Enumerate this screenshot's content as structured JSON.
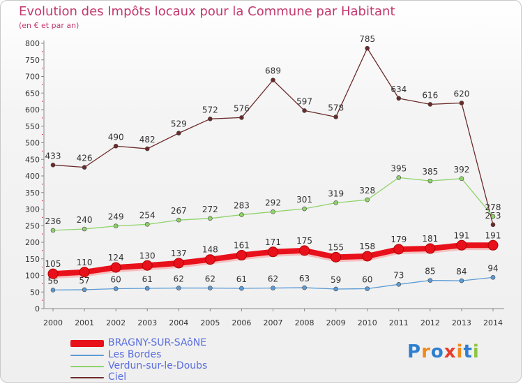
{
  "header": {
    "title": "Evolution des Impôts locaux pour la Commune par Habitant",
    "subtitle": "(en € et par an)"
  },
  "logo_text": "Proxiti",
  "chart_data": {
    "type": "line",
    "x": [
      "2000",
      "2001",
      "2002",
      "2003",
      "2004",
      "2005",
      "2006",
      "2007",
      "2008",
      "2009",
      "2010",
      "2011",
      "2012",
      "2013",
      "2014"
    ],
    "ylim": [
      0,
      800
    ],
    "yticks": [
      0,
      50,
      100,
      150,
      200,
      250,
      300,
      350,
      400,
      450,
      500,
      550,
      600,
      650,
      700,
      750,
      800
    ],
    "grid": false,
    "legend_position": "bottom-left",
    "series": [
      {
        "name": "BRAGNY-SUR-SAôNE",
        "color": "#e8111b",
        "values": [
          105,
          110,
          124,
          130,
          137,
          148,
          161,
          171,
          175,
          155,
          158,
          179,
          181,
          191,
          191
        ],
        "labels": [
          "105",
          "110",
          "124",
          "130",
          "137",
          "148",
          "161",
          "171",
          "175",
          "155",
          "158",
          "179",
          "181",
          "191",
          "191"
        ]
      },
      {
        "name": "Les Bordes",
        "color": "#5b9bd5",
        "values": [
          56,
          57,
          60,
          61,
          62,
          62,
          61,
          62,
          63,
          59,
          60,
          73,
          85,
          84,
          94
        ],
        "labels": [
          "56",
          "57",
          "60",
          "61",
          "62",
          "62",
          "61",
          "62",
          "63",
          "59",
          "60",
          "73",
          "85",
          "84",
          "94"
        ]
      },
      {
        "name": "Verdun-sur-le-Doubs",
        "color": "#8fd36a",
        "values": [
          236,
          240,
          249,
          254,
          267,
          272,
          283,
          292,
          301,
          319,
          328,
          395,
          385,
          392,
          278
        ],
        "labels": [
          "236",
          "240",
          "249",
          "254",
          "267",
          "272",
          "283",
          "292",
          "301",
          "319",
          "328",
          "395",
          "385",
          "392",
          "278"
        ]
      },
      {
        "name": "Ciel",
        "color": "#6b2a2a",
        "values": [
          433,
          426,
          490,
          482,
          529,
          572,
          576,
          689,
          597,
          578,
          785,
          634,
          616,
          620,
          253
        ],
        "labels": [
          "433",
          "426",
          "490",
          "482",
          "529",
          "572",
          "576",
          "689",
          "597",
          "578",
          "785",
          "634",
          "616",
          "620",
          "253"
        ]
      }
    ]
  }
}
